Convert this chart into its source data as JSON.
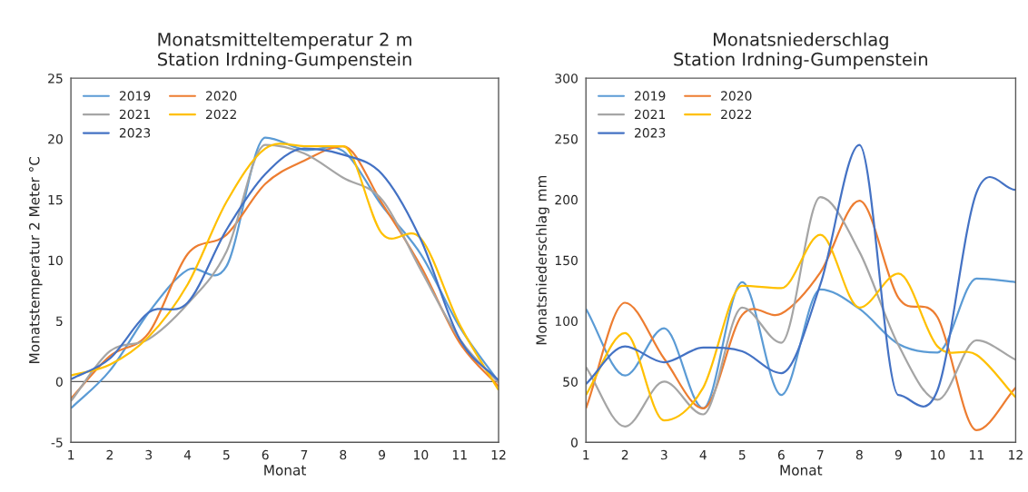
{
  "chart_data": [
    {
      "type": "line",
      "title": "Monatsmitteltemperatur 2 m\nStation Irdning-Gumpenstein",
      "xlabel": "Monat",
      "ylabel": "Monatstemperatur 2 Meter °C",
      "x": [
        1,
        2,
        3,
        4,
        5,
        6,
        7,
        8,
        9,
        10,
        11,
        12
      ],
      "xlim": [
        1,
        12
      ],
      "xticks": [
        1,
        2,
        3,
        4,
        5,
        6,
        7,
        8,
        9,
        10,
        11,
        12
      ],
      "ylim": [
        -5,
        25
      ],
      "yticks": [
        -5,
        0,
        5,
        10,
        15,
        20,
        25
      ],
      "grid": false,
      "legend": "top left",
      "ref_lines": [
        {
          "axis": "y",
          "value": 0,
          "color": "#595959"
        }
      ],
      "series": [
        {
          "name": "2019",
          "color": "#5b9bd5",
          "values": [
            -2.2,
            0.9,
            5.7,
            9.2,
            9.5,
            20.1,
            19.1,
            19.0,
            14.5,
            10.5,
            4.5,
            0.0
          ]
        },
        {
          "name": "2020",
          "color": "#ed7d31",
          "values": [
            -1.4,
            2.1,
            4.0,
            10.5,
            12.1,
            16.3,
            18.2,
            19.4,
            14.7,
            9.5,
            3.2,
            -0.4
          ]
        },
        {
          "name": "2021",
          "color": "#a5a5a5",
          "values": [
            -1.6,
            2.5,
            3.5,
            6.4,
            10.7,
            19.5,
            18.8,
            16.8,
            15.0,
            9.2,
            3.5,
            -0.1
          ]
        },
        {
          "name": "2022",
          "color": "#ffc000",
          "values": [
            0.5,
            1.4,
            3.7,
            8.0,
            14.8,
            19.2,
            19.4,
            19.4,
            12.2,
            11.8,
            4.7,
            -0.7
          ]
        },
        {
          "name": "2023",
          "color": "#4472c4",
          "values": [
            0.2,
            1.9,
            5.7,
            6.5,
            12.5,
            17.1,
            19.2,
            18.7,
            17.1,
            11.7,
            3.5,
            0.1
          ]
        }
      ]
    },
    {
      "type": "line",
      "title": "Monatsniederschlag\nStation Irdning-Gumpenstein",
      "xlabel": "Monat",
      "ylabel": "Monatsniederschlag mm",
      "x": [
        1,
        2,
        3,
        4,
        5,
        6,
        7,
        8,
        9,
        10,
        11,
        12
      ],
      "xlim": [
        1,
        12
      ],
      "xticks": [
        1,
        2,
        3,
        4,
        5,
        6,
        7,
        8,
        9,
        10,
        11,
        12
      ],
      "ylim": [
        0,
        300
      ],
      "yticks": [
        0,
        50,
        100,
        150,
        200,
        250,
        300
      ],
      "grid": false,
      "legend": "top left",
      "series": [
        {
          "name": "2019",
          "color": "#5b9bd5",
          "values": [
            110,
            55,
            94,
            28,
            132,
            39,
            126,
            110,
            81,
            74,
            135,
            132
          ]
        },
        {
          "name": "2020",
          "color": "#ed7d31",
          "values": [
            28,
            115,
            69,
            28,
            105,
            106,
            140,
            199,
            119,
            103,
            10,
            45
          ]
        },
        {
          "name": "2021",
          "color": "#a5a5a5",
          "values": [
            62,
            13,
            50,
            23,
            111,
            82,
            202,
            157,
            80,
            35,
            84,
            68
          ]
        },
        {
          "name": "2022",
          "color": "#ffc000",
          "values": [
            39,
            90,
            18,
            45,
            129,
            127,
            171,
            111,
            139,
            79,
            72,
            37
          ]
        },
        {
          "name": "2023",
          "color": "#4472c4",
          "values": [
            48,
            79,
            66,
            78,
            75,
            57,
            130,
            245,
            39,
            43,
            206,
            208
          ]
        }
      ]
    }
  ]
}
